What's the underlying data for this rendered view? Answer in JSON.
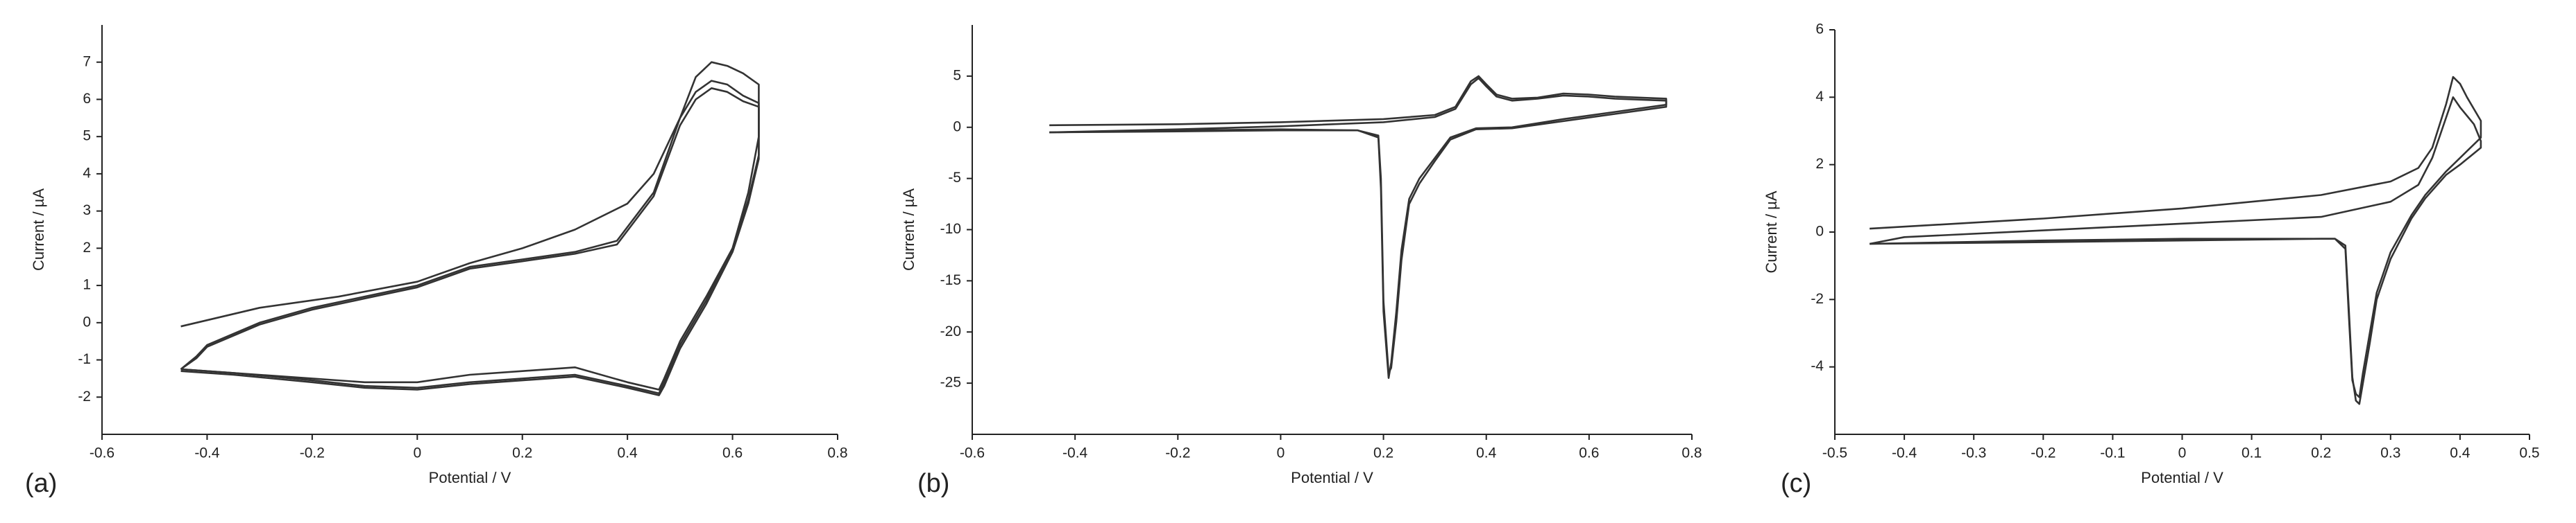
{
  "chart_data": [
    {
      "type": "line",
      "label": "(a)",
      "x_label": "Potential / V",
      "y_label": "Current / µA",
      "xlim": [
        -0.6,
        0.8
      ],
      "xticks": [
        -0.6,
        -0.4,
        -0.2,
        0,
        0.2,
        0.4,
        0.6,
        0.8
      ],
      "ylim": [
        -3,
        8
      ],
      "yticks": [
        -2,
        -1,
        0,
        1,
        2,
        3,
        4,
        5,
        6,
        7
      ],
      "grid": false,
      "color": "#333333",
      "series": [
        {
          "x": [
            -0.45,
            -0.3,
            -0.15,
            0,
            0.1,
            0.2,
            0.3,
            0.4,
            0.45,
            0.5,
            0.53,
            0.56,
            0.59,
            0.62,
            0.65,
            0.65,
            0.63,
            0.6,
            0.55,
            0.5,
            0.47,
            0.46,
            0.43,
            0.4,
            0.3,
            0.2,
            0.1,
            0,
            -0.1,
            -0.2,
            -0.35,
            -0.45
          ],
          "values": [
            -0.1,
            0.4,
            0.7,
            1.1,
            1.6,
            2.0,
            2.5,
            3.2,
            4.0,
            5.5,
            6.6,
            7.0,
            6.9,
            6.7,
            6.4,
            5.0,
            3.5,
            2.0,
            0.7,
            -0.5,
            -1.5,
            -1.8,
            -1.7,
            -1.6,
            -1.2,
            -1.3,
            -1.4,
            -1.6,
            -1.6,
            -1.5,
            -1.35,
            -1.25
          ]
        },
        {
          "x": [
            -0.45,
            -0.42,
            -0.4,
            -0.3,
            -0.2,
            -0.1,
            0,
            0.1,
            0.2,
            0.3,
            0.38,
            0.45,
            0.5,
            0.53,
            0.56,
            0.59,
            0.62,
            0.65,
            0.65,
            0.63,
            0.6,
            0.55,
            0.5,
            0.47,
            0.46,
            0.43,
            0.4,
            0.3,
            0.2,
            0.1,
            0,
            -0.1,
            -0.2,
            -0.35,
            -0.45
          ],
          "values": [
            -1.25,
            -0.9,
            -0.6,
            0,
            0.4,
            0.7,
            1.0,
            1.5,
            1.7,
            1.9,
            2.2,
            3.5,
            5.5,
            6.2,
            6.5,
            6.4,
            6.1,
            5.9,
            4.5,
            3.3,
            2.0,
            0.6,
            -0.6,
            -1.6,
            -1.9,
            -1.8,
            -1.7,
            -1.4,
            -1.5,
            -1.6,
            -1.75,
            -1.7,
            -1.55,
            -1.35,
            -1.25
          ]
        },
        {
          "x": [
            -0.45,
            -0.42,
            -0.4,
            -0.3,
            -0.2,
            -0.1,
            0,
            0.1,
            0.2,
            0.3,
            0.38,
            0.45,
            0.5,
            0.53,
            0.56,
            0.59,
            0.62,
            0.65,
            0.65,
            0.63,
            0.6,
            0.55,
            0.5,
            0.47,
            0.46,
            0.43,
            0.4,
            0.3,
            0.2,
            0.1,
            0,
            -0.1,
            -0.2,
            -0.35,
            -0.45
          ],
          "values": [
            -1.25,
            -0.95,
            -0.65,
            -0.05,
            0.35,
            0.65,
            0.95,
            1.45,
            1.65,
            1.85,
            2.1,
            3.4,
            5.3,
            6.0,
            6.3,
            6.2,
            5.95,
            5.8,
            4.4,
            3.2,
            1.9,
            0.5,
            -0.7,
            -1.7,
            -1.95,
            -1.85,
            -1.75,
            -1.45,
            -1.55,
            -1.65,
            -1.8,
            -1.75,
            -1.6,
            -1.4,
            -1.3
          ]
        }
      ]
    },
    {
      "type": "line",
      "label": "(b)",
      "x_label": "Potential / V",
      "y_label": "Current / µA",
      "xlim": [
        -0.6,
        0.8
      ],
      "xticks": [
        -0.6,
        -0.4,
        -0.2,
        0,
        0.2,
        0.4,
        0.6,
        0.8
      ],
      "ylim": [
        -30,
        10
      ],
      "yticks": [
        -25,
        -20,
        -15,
        -10,
        -5,
        0,
        5
      ],
      "grid": false,
      "color": "#333333",
      "series": [
        {
          "x": [
            -0.45,
            -0.2,
            0,
            0.2,
            0.3,
            0.34,
            0.37,
            0.385,
            0.4,
            0.42,
            0.45,
            0.5,
            0.55,
            0.6,
            0.65,
            0.75,
            0.75,
            0.65,
            0.55,
            0.45,
            0.38,
            0.33,
            0.3,
            0.27,
            0.25,
            0.235,
            0.225,
            0.215,
            0.21,
            0.2,
            0.195,
            0.19,
            0.15,
            0,
            -0.2,
            -0.45
          ],
          "values": [
            0.2,
            0.3,
            0.5,
            0.8,
            1.2,
            2.0,
            4.5,
            5.0,
            4.2,
            3.2,
            2.8,
            2.9,
            3.3,
            3.2,
            3.0,
            2.8,
            2.2,
            1.5,
            0.8,
            0,
            -0.1,
            -1,
            -3,
            -5,
            -7,
            -12,
            -18,
            -23,
            -24.5,
            -18,
            -6,
            -1,
            -0.3,
            -0.2,
            -0.3,
            -0.5
          ]
        },
        {
          "x": [
            -0.45,
            -0.2,
            0,
            0.2,
            0.3,
            0.34,
            0.37,
            0.385,
            0.4,
            0.42,
            0.45,
            0.5,
            0.55,
            0.6,
            0.65,
            0.75,
            0.75,
            0.65,
            0.55,
            0.45,
            0.38,
            0.33,
            0.3,
            0.27,
            0.25,
            0.235,
            0.225,
            0.215,
            0.21,
            0.2,
            0.195,
            0.19,
            0.15,
            0,
            -0.2,
            -0.45
          ],
          "values": [
            -0.5,
            -0.2,
            0.1,
            0.5,
            1.0,
            1.8,
            4.2,
            4.8,
            4.0,
            3.0,
            2.6,
            2.8,
            3.1,
            3.0,
            2.8,
            2.6,
            2.0,
            1.3,
            0.6,
            -0.1,
            -0.2,
            -1.2,
            -3.3,
            -5.5,
            -7.5,
            -13,
            -19,
            -23.5,
            -24,
            -17,
            -5,
            -0.8,
            -0.3,
            -0.3,
            -0.4,
            -0.5
          ]
        }
      ]
    },
    {
      "type": "line",
      "label": "(c)",
      "x_label": "Potential / V",
      "y_label": "Current / µA",
      "xlim": [
        -0.5,
        0.5
      ],
      "xticks": [
        -0.5,
        -0.4,
        -0.3,
        -0.2,
        -0.1,
        0,
        0.1,
        0.2,
        0.3,
        0.4,
        0.5
      ],
      "ylim": [
        -6,
        6
      ],
      "yticks": [
        -4,
        -2,
        0,
        2,
        4,
        6
      ],
      "grid": false,
      "color": "#333333",
      "series": [
        {
          "x": [
            -0.45,
            -0.2,
            0,
            0.2,
            0.3,
            0.34,
            0.36,
            0.38,
            0.39,
            0.4,
            0.41,
            0.43,
            0.43,
            0.4,
            0.38,
            0.35,
            0.33,
            0.3,
            0.28,
            0.27,
            0.26,
            0.255,
            0.25,
            0.245,
            0.24,
            0.235,
            0.22,
            0.2,
            0,
            -0.2,
            -0.45
          ],
          "values": [
            0.1,
            0.4,
            0.7,
            1.1,
            1.5,
            1.9,
            2.5,
            3.8,
            4.6,
            4.4,
            4.0,
            3.3,
            2.8,
            2.2,
            1.8,
            1.1,
            0.5,
            -0.6,
            -1.8,
            -3.0,
            -4.2,
            -4.9,
            -4.8,
            -4.4,
            -2.5,
            -0.5,
            -0.2,
            -0.2,
            -0.2,
            -0.25,
            -0.35
          ]
        },
        {
          "x": [
            -0.45,
            -0.4,
            -0.2,
            0,
            0.2,
            0.3,
            0.34,
            0.36,
            0.38,
            0.39,
            0.4,
            0.42,
            0.43,
            0.43,
            0.4,
            0.38,
            0.35,
            0.33,
            0.3,
            0.28,
            0.27,
            0.26,
            0.255,
            0.25,
            0.245,
            0.24,
            0.235,
            0.22,
            0.2,
            0,
            -0.2,
            -0.45
          ],
          "values": [
            -0.35,
            -0.15,
            0.05,
            0.25,
            0.45,
            0.9,
            1.4,
            2.2,
            3.4,
            4.0,
            3.7,
            3.2,
            2.7,
            2.5,
            2.0,
            1.7,
            1.0,
            0.4,
            -0.8,
            -2.0,
            -3.3,
            -4.5,
            -5.1,
            -5.0,
            -4.3,
            -2.3,
            -0.4,
            -0.2,
            -0.2,
            -0.25,
            -0.3,
            -0.35
          ]
        }
      ]
    }
  ]
}
